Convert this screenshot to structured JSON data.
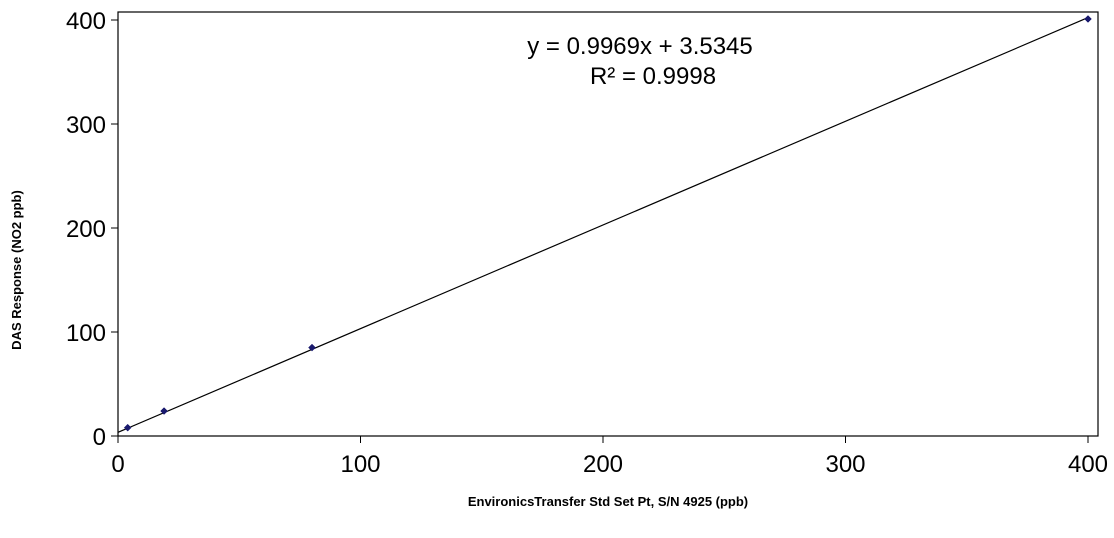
{
  "chart_data": {
    "type": "scatter",
    "xlabel": "EnvironicsTransfer Std Set Pt, S/N 4925 (ppb)",
    "ylabel": "DAS Response (NO2 ppb)",
    "xlim": [
      0,
      400
    ],
    "ylim": [
      0,
      400
    ],
    "x_ticks": [
      0,
      100,
      200,
      300,
      400
    ],
    "y_ticks": [
      0,
      100,
      200,
      300,
      400
    ],
    "grid": false,
    "legend": "none",
    "series": [
      {
        "x": [
          4,
          19,
          80,
          400
        ],
        "y": [
          8,
          24,
          85,
          401
        ],
        "color": "#1a1a6e",
        "marker": "diamond"
      }
    ],
    "trendline": {
      "slope": 0.9969,
      "intercept": 3.5345,
      "color": "#000000"
    },
    "annotations": [
      "y = 0.9969x + 3.5345",
      "R² = 0.9998"
    ]
  }
}
